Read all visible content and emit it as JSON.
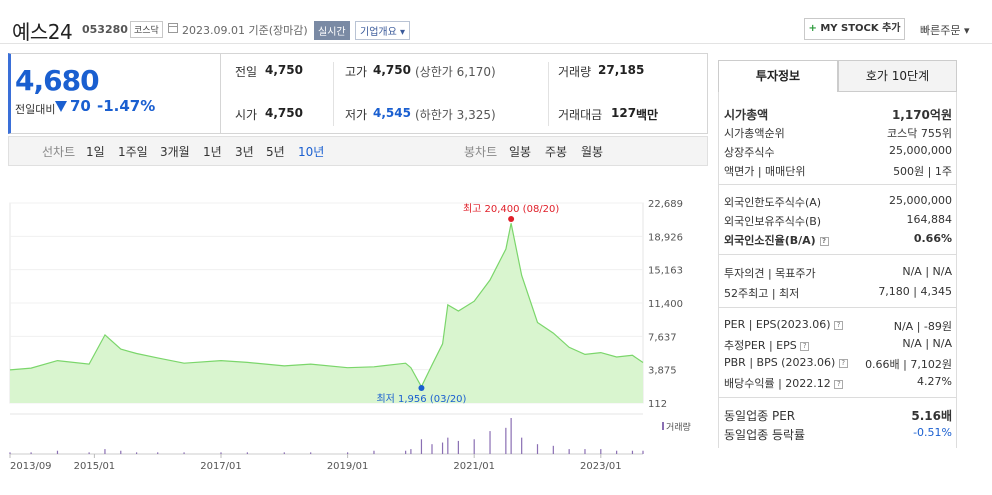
{
  "header": {
    "name": "예스24",
    "code": "053280",
    "market": "코스닥",
    "date": "2023.09.01  기준(장마감)",
    "realtime": "실시간",
    "overview": "기업개요 ▾",
    "mystock": "MY STOCK 추가",
    "mystock_plus": "+",
    "quick_order": "빠른주문 ▾"
  },
  "price": {
    "current": "4,680",
    "change_label": "전일대비",
    "change": "70",
    "change_pct": "-1.47%"
  },
  "stats": {
    "prev_label": "전일",
    "prev": "4,750",
    "high_label": "고가",
    "high": "4,750",
    "upper_limit": "(상한가 6,170)",
    "volume_label": "거래량",
    "volume": "27,185",
    "open_label": "시가",
    "open": "4,750",
    "low_label": "저가",
    "low": "4,545",
    "lower_limit": "(하한가 3,325)",
    "amount_label": "거래대금",
    "amount": "127",
    "amount_unit": "백만"
  },
  "chart_tabs": {
    "line_label": "선차트",
    "line_periods": [
      "1일",
      "1주일",
      "3개월",
      "1년",
      "3년",
      "5년",
      "10년"
    ],
    "active_period": "10년",
    "candle_label": "봉차트",
    "candle_periods": [
      "일봉",
      "주봉",
      "월봉"
    ]
  },
  "chart_data": {
    "type": "area",
    "y_ticks": [
      "22,689",
      "18,926",
      "15,163",
      "11,400",
      "7,637",
      "3,875",
      "112"
    ],
    "x_ticks": [
      "2013/09",
      "2015/01",
      "2017/01",
      "2019/01",
      "2021/01",
      "2023/01"
    ],
    "high_label": "최고 20,400 (08/20)",
    "low_label": "최저 1,956 (03/20)",
    "volume_label": "거래량",
    "ylim": [
      112,
      22689
    ],
    "series": [
      {
        "x": [
          "2013/09",
          "2014/01",
          "2014/06",
          "2014/12",
          "2015/03",
          "2015/06",
          "2015/09",
          "2016/01",
          "2016/06",
          "2017/01",
          "2017/06",
          "2018/01",
          "2018/06",
          "2019/01",
          "2019/06",
          "2019/12",
          "2020/01",
          "2020/03",
          "2020/05",
          "2020/07",
          "2020/08",
          "2020/10",
          "2021/01",
          "2021/04",
          "2021/07",
          "2021/08",
          "2021/10",
          "2022/01",
          "2022/04",
          "2022/07",
          "2022/10",
          "2023/01",
          "2023/04",
          "2023/07",
          "2023/09"
        ],
        "values": [
          3850,
          4050,
          4900,
          4500,
          7800,
          6200,
          5700,
          5200,
          4600,
          4900,
          4700,
          4300,
          4500,
          4100,
          4200,
          4600,
          4100,
          1956,
          4400,
          6800,
          11200,
          10500,
          11600,
          14000,
          17500,
          20400,
          14500,
          9200,
          8000,
          6400,
          5600,
          5800,
          5300,
          5500,
          4680
        ]
      }
    ],
    "volume": [
      1,
      1,
      2,
      1,
      3,
      2,
      1,
      1,
      1,
      1,
      1,
      1,
      1,
      1,
      2,
      2,
      3,
      9,
      6,
      7,
      10,
      8,
      9,
      14,
      16,
      22,
      10,
      6,
      5,
      3,
      3,
      3,
      2,
      2,
      2
    ]
  },
  "right_tabs": [
    "투자정보",
    "호가 10단계"
  ],
  "invest": {
    "mcap_label": "시가총액",
    "mcap": "1,170억원",
    "mcap_rank_label": "시가총액순위",
    "mcap_rank": "코스닥 755위",
    "shares_label": "상장주식수",
    "shares": "25,000,000",
    "par_label": "액면가 | 매매단위",
    "par": "500원 | 1주",
    "foreign_limit_label": "외국인한도주식수(A)",
    "foreign_limit": "25,000,000",
    "foreign_hold_label": "외국인보유주식수(B)",
    "foreign_hold": "164,884",
    "foreign_ratio_label": "외국인소진율(B/A)",
    "foreign_ratio": "0.66%",
    "opinion_label": "투자의견 | 목표주가",
    "opinion": "N/A | N/A",
    "week52_label": "52주최고 | 최저",
    "week52": "7,180 | 4,345",
    "per_label": "PER | EPS(2023.06)",
    "per": "N/A | -89원",
    "est_per_label": "추정PER | EPS",
    "est_per": "N/A | N/A",
    "pbr_label": "PBR | BPS (2023.06)",
    "pbr": "0.66배 | 7,102원",
    "div_label": "배당수익률 | 2022.12",
    "div": "4.27%",
    "ind_per_label": "동일업종 PER",
    "ind_per": "5.16배",
    "ind_rate_label": "동일업종 등락률",
    "ind_rate": "-0.51%"
  },
  "colors": {
    "accent": "#1a5fd0",
    "area": "#7bd66b",
    "area_fill": "#d9f5cf",
    "high": "#e0202a",
    "volume": "#8a6fb3"
  }
}
